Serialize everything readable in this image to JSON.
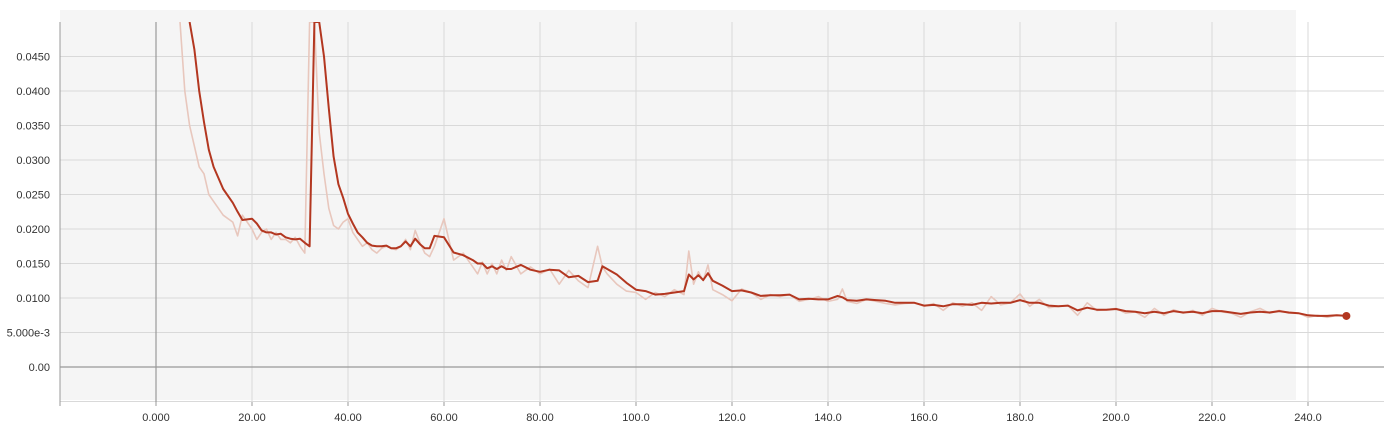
{
  "chart_data": {
    "type": "line",
    "title": "",
    "xlabel": "",
    "ylabel": "",
    "xlim": [
      -20,
      252
    ],
    "ylim": [
      -0.005,
      0.05
    ],
    "x_ticks": [
      0,
      20,
      40,
      60,
      80,
      100,
      120,
      140,
      160,
      180,
      200,
      220,
      240
    ],
    "x_tick_labels": [
      "0.000",
      "20.00",
      "40.00",
      "60.00",
      "80.00",
      "100.0",
      "120.0",
      "140.0",
      "160.0",
      "180.0",
      "200.0",
      "220.0",
      "240.0"
    ],
    "y_ticks": [
      0,
      0.005,
      0.01,
      0.015,
      0.02,
      0.025,
      0.03,
      0.035,
      0.04,
      0.045
    ],
    "y_tick_labels": [
      "0.00",
      "5.000e-3",
      "0.0100",
      "0.0150",
      "0.0200",
      "0.0250",
      "0.0300",
      "0.0350",
      "0.0400",
      "0.0450"
    ],
    "grid": true,
    "colors": {
      "smoothed": "#b33720",
      "raw": "#e8c7bd",
      "plot_background": "#f5f5f5",
      "grid": "#d9d9d9",
      "zero_axis": "#999999"
    },
    "series": [
      {
        "style": "raw",
        "x": [
          5,
          6,
          7,
          8,
          9,
          10,
          11,
          12,
          14,
          16,
          17,
          18,
          20,
          21,
          22,
          23,
          24,
          25,
          26,
          27,
          28,
          29,
          30,
          31,
          32,
          33,
          34,
          35,
          36,
          37,
          38,
          39,
          40,
          41,
          42,
          43,
          44,
          45,
          46,
          47,
          48,
          49,
          50,
          51,
          52,
          53,
          54,
          55,
          56,
          57,
          58,
          60,
          62,
          64,
          66,
          67,
          68,
          69,
          70,
          71,
          72,
          73,
          74,
          76,
          78,
          80,
          82,
          84,
          86,
          88,
          90,
          92,
          93,
          94,
          96,
          98,
          100,
          102,
          104,
          106,
          108,
          110,
          111,
          112,
          113,
          114,
          115,
          116,
          118,
          120,
          122,
          124,
          126,
          128,
          130,
          132,
          134,
          136,
          138,
          140,
          142,
          143,
          144,
          146,
          148,
          150,
          152,
          154,
          156,
          158,
          160,
          162,
          164,
          166,
          168,
          170,
          172,
          174,
          176,
          178,
          180,
          182,
          184,
          186,
          188,
          190,
          192,
          194,
          196,
          198,
          200,
          202,
          204,
          206,
          208,
          210,
          212,
          214,
          216,
          218,
          220,
          222,
          224,
          226,
          228,
          230,
          232,
          234,
          236,
          238,
          240,
          242,
          244,
          246,
          248
        ],
        "y": [
          0.05,
          0.04,
          0.035,
          0.032,
          0.029,
          0.028,
          0.025,
          0.024,
          0.022,
          0.021,
          0.019,
          0.022,
          0.02,
          0.0185,
          0.0195,
          0.02,
          0.0185,
          0.0195,
          0.0185,
          0.0185,
          0.018,
          0.0188,
          0.0175,
          0.0165,
          0.05,
          0.05,
          0.034,
          0.028,
          0.023,
          0.0205,
          0.02,
          0.021,
          0.0215,
          0.0195,
          0.0185,
          0.0175,
          0.018,
          0.017,
          0.0165,
          0.0172,
          0.0175,
          0.0172,
          0.017,
          0.0175,
          0.0185,
          0.017,
          0.0198,
          0.018,
          0.0165,
          0.016,
          0.0175,
          0.0215,
          0.0155,
          0.0165,
          0.0145,
          0.0135,
          0.0152,
          0.0135,
          0.015,
          0.0135,
          0.0155,
          0.014,
          0.016,
          0.0135,
          0.0145,
          0.0135,
          0.0142,
          0.012,
          0.014,
          0.0125,
          0.0115,
          0.0175,
          0.0145,
          0.0135,
          0.012,
          0.011,
          0.0108,
          0.0098,
          0.0108,
          0.0102,
          0.0112,
          0.0105,
          0.0168,
          0.012,
          0.0138,
          0.0125,
          0.0148,
          0.0112,
          0.0105,
          0.0096,
          0.0113,
          0.0108,
          0.0098,
          0.0105,
          0.0102,
          0.0105,
          0.0095,
          0.0098,
          0.0102,
          0.0095,
          0.0098,
          0.0113,
          0.0095,
          0.0092,
          0.0098,
          0.0095,
          0.0092,
          0.009,
          0.0092,
          0.0093,
          0.0088,
          0.0092,
          0.0082,
          0.0093,
          0.0088,
          0.0093,
          0.0082,
          0.0102,
          0.009,
          0.0093,
          0.0106,
          0.0088,
          0.0098,
          0.0086,
          0.0088,
          0.0089,
          0.0075,
          0.0093,
          0.0082,
          0.0083,
          0.0085,
          0.0078,
          0.008,
          0.0072,
          0.0085,
          0.0075,
          0.0083,
          0.0078,
          0.0082,
          0.0075,
          0.0085,
          0.008,
          0.0078,
          0.0072,
          0.008,
          0.0085,
          0.0078,
          0.0082,
          0.0078,
          0.0078,
          0.0072,
          0.0075,
          0.0072,
          0.0075,
          0.0074
        ]
      },
      {
        "style": "smoothed",
        "x": [
          7,
          8,
          9,
          10,
          11,
          12,
          14,
          16,
          17,
          18,
          20,
          21,
          22,
          23,
          24,
          25,
          26,
          27,
          28,
          29,
          30,
          31,
          32,
          33,
          34,
          35,
          36,
          37,
          38,
          39,
          40,
          41,
          42,
          43,
          44,
          45,
          46,
          47,
          48,
          49,
          50,
          51,
          52,
          53,
          54,
          55,
          56,
          57,
          58,
          60,
          62,
          64,
          66,
          67,
          68,
          69,
          70,
          71,
          72,
          73,
          74,
          76,
          78,
          80,
          82,
          84,
          86,
          88,
          90,
          92,
          93,
          94,
          96,
          98,
          100,
          102,
          104,
          106,
          108,
          110,
          111,
          112,
          113,
          114,
          115,
          116,
          118,
          120,
          122,
          124,
          126,
          128,
          130,
          132,
          134,
          136,
          138,
          140,
          142,
          143,
          144,
          146,
          148,
          150,
          152,
          154,
          156,
          158,
          160,
          162,
          164,
          166,
          168,
          170,
          172,
          174,
          176,
          178,
          180,
          182,
          184,
          186,
          188,
          190,
          192,
          194,
          196,
          198,
          200,
          202,
          204,
          206,
          208,
          210,
          212,
          214,
          216,
          218,
          220,
          222,
          224,
          226,
          228,
          230,
          232,
          234,
          236,
          238,
          240,
          242,
          244,
          246,
          248
        ],
        "y": [
          0.05,
          0.046,
          0.04,
          0.0355,
          0.0315,
          0.029,
          0.0258,
          0.0238,
          0.0225,
          0.0213,
          0.0215,
          0.0208,
          0.0198,
          0.0195,
          0.0195,
          0.0192,
          0.0193,
          0.0188,
          0.0186,
          0.0185,
          0.0186,
          0.018,
          0.0175,
          0.05,
          0.05,
          0.045,
          0.0375,
          0.0305,
          0.0265,
          0.0245,
          0.0222,
          0.0208,
          0.0195,
          0.0188,
          0.018,
          0.0176,
          0.0175,
          0.0175,
          0.0176,
          0.0172,
          0.0172,
          0.0175,
          0.0182,
          0.0175,
          0.0186,
          0.0178,
          0.0172,
          0.0172,
          0.019,
          0.0188,
          0.0166,
          0.0162,
          0.0155,
          0.015,
          0.015,
          0.0143,
          0.0146,
          0.0142,
          0.0146,
          0.0142,
          0.0142,
          0.0148,
          0.0141,
          0.0138,
          0.0141,
          0.014,
          0.013,
          0.0132,
          0.0123,
          0.0125,
          0.0146,
          0.0142,
          0.0134,
          0.0122,
          0.0112,
          0.011,
          0.0105,
          0.0106,
          0.0108,
          0.011,
          0.0134,
          0.0127,
          0.0133,
          0.0126,
          0.0136,
          0.0125,
          0.0118,
          0.011,
          0.0111,
          0.0108,
          0.0103,
          0.0104,
          0.0104,
          0.0105,
          0.0098,
          0.0099,
          0.0098,
          0.0098,
          0.0103,
          0.0101,
          0.0097,
          0.0096,
          0.0098,
          0.0097,
          0.0096,
          0.0093,
          0.0093,
          0.0093,
          0.0089,
          0.009,
          0.0088,
          0.0091,
          0.0091,
          0.009,
          0.0093,
          0.0092,
          0.0093,
          0.0093,
          0.0097,
          0.0093,
          0.0093,
          0.0089,
          0.0088,
          0.0089,
          0.0082,
          0.0086,
          0.0083,
          0.0083,
          0.0084,
          0.0081,
          0.008,
          0.0078,
          0.008,
          0.0078,
          0.0081,
          0.0079,
          0.008,
          0.0078,
          0.0081,
          0.0081,
          0.0079,
          0.0077,
          0.0079,
          0.008,
          0.0079,
          0.0081,
          0.0079,
          0.0078,
          0.0075,
          0.0074,
          0.0074,
          0.0075,
          0.0074
        ]
      }
    ],
    "last_point": {
      "x": 248,
      "y": 0.0074
    }
  }
}
